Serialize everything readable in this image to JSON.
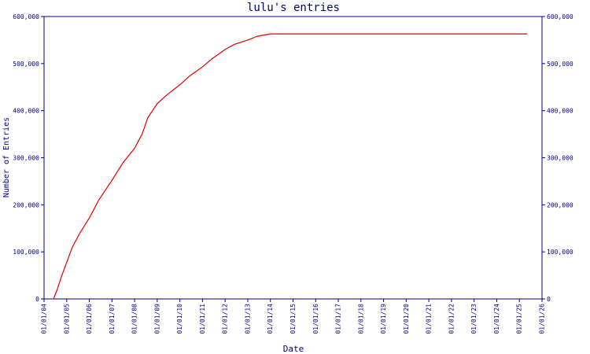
{
  "chart_data": {
    "type": "line",
    "title": "lulu's entries",
    "xlabel": "Date",
    "ylabel": "Number of Entries",
    "ylim": [
      0,
      600000
    ],
    "y_ticks": [
      0,
      100000,
      200000,
      300000,
      400000,
      500000,
      600000
    ],
    "y_tick_labels": [
      "0",
      "100,000",
      "200,000",
      "300,000",
      "400,000",
      "500,000",
      "600,000"
    ],
    "y_ticks_right": true,
    "x_tick_labels": [
      "01/01/04",
      "01/01/05",
      "01/01/06",
      "01/01/07",
      "01/01/08",
      "01/01/09",
      "01/01/10",
      "01/01/11",
      "01/01/12",
      "01/01/13",
      "01/01/14",
      "01/01/15",
      "01/01/16",
      "01/01/17",
      "01/01/18",
      "01/01/19",
      "01/01/20",
      "01/01/21",
      "01/01/22",
      "01/01/23",
      "01/01/24",
      "01/01/25",
      "01/01/26"
    ],
    "xlim": [
      "2004-01-01",
      "2026-01-01"
    ],
    "grid": false,
    "legend": "none",
    "colors": {
      "axis": "#000080",
      "line": "#dd0000",
      "text": "#000080"
    },
    "series": [
      {
        "x": [
          "2004-06-01",
          "2004-08-01",
          "2004-10-01",
          "2005-01-01",
          "2005-04-01",
          "2005-08-01",
          "2006-01-01",
          "2006-06-01",
          "2007-01-01",
          "2007-07-01",
          "2008-01-01",
          "2008-05-01",
          "2008-08-01",
          "2009-01-01",
          "2009-06-01",
          "2010-01-01",
          "2010-06-01",
          "2011-01-01",
          "2011-06-01",
          "2012-01-01",
          "2012-06-01",
          "2013-01-01",
          "2013-06-01",
          "2014-01-01",
          "2015-01-01",
          "2016-01-01",
          "2017-01-01",
          "2018-01-01",
          "2019-01-01",
          "2020-01-01",
          "2021-01-01",
          "2022-01-01",
          "2023-01-01",
          "2024-01-01",
          "2025-01-01",
          "2025-05-01"
        ],
        "y": [
          0,
          20000,
          45000,
          78000,
          110000,
          140000,
          172000,
          210000,
          252000,
          290000,
          320000,
          350000,
          385000,
          415000,
          433000,
          455000,
          473000,
          493000,
          510000,
          530000,
          541000,
          550000,
          558000,
          563000,
          563000,
          563000,
          563000,
          563000,
          563000,
          563000,
          563000,
          563000,
          563000,
          563000,
          563000,
          563000
        ]
      }
    ]
  }
}
